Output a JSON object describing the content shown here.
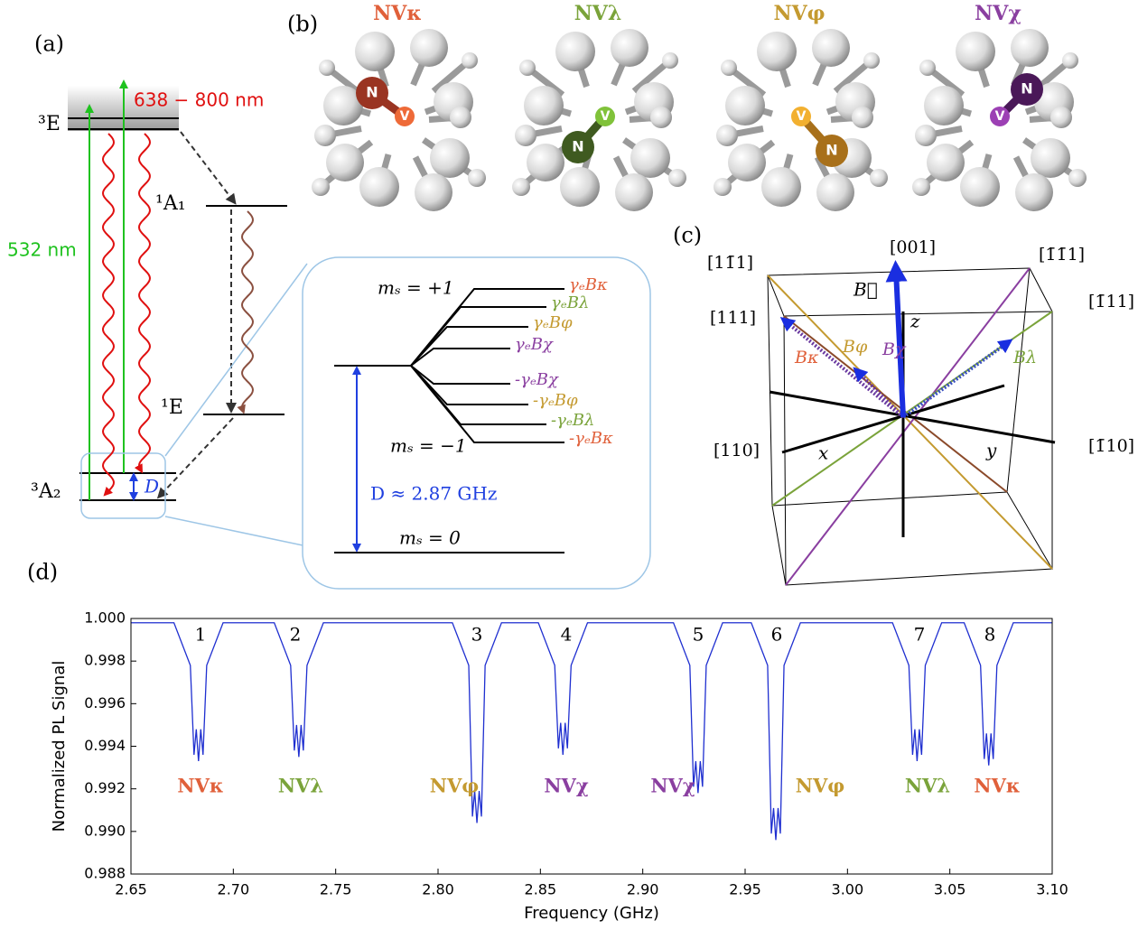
{
  "panel_a": {
    "label": "(a)",
    "level_3E": "³E",
    "level_1A1": "¹A₁",
    "level_1E": "¹E",
    "level_3A2": "³A₂",
    "excitation": "532 nm",
    "emission": "638 − 800 nm",
    "splitting": "D",
    "inset": {
      "ms_plus": "mₛ = +1",
      "ms_minus": "mₛ = −1",
      "ms_zero": "mₛ = 0",
      "zfs": "D ≈ 2.87 GHz",
      "zeeman": [
        {
          "text": "γₑBκ",
          "color": "#e0603a"
        },
        {
          "text": "γₑBλ",
          "color": "#7aa33a"
        },
        {
          "text": "γₑBφ",
          "color": "#c49a30"
        },
        {
          "text": "γₑBχ",
          "color": "#8a3fa0"
        },
        {
          "text": "-γₑBχ",
          "color": "#8a3fa0"
        },
        {
          "text": "-γₑBφ",
          "color": "#c49a30"
        },
        {
          "text": "-γₑBλ",
          "color": "#7aa33a"
        },
        {
          "text": "-γₑBκ",
          "color": "#e0603a"
        }
      ]
    }
  },
  "panel_b": {
    "label": "(b)",
    "titles": [
      {
        "text": "NVκ",
        "color": "#e0603a"
      },
      {
        "text": "NVλ",
        "color": "#7aa33a"
      },
      {
        "text": "NVφ",
        "color": "#c49a30"
      },
      {
        "text": "NVχ",
        "color": "#8a3fa0"
      }
    ]
  },
  "panel_c": {
    "label": "(c)",
    "directions": [
      "[1̄1̄1]",
      "[11̄1]",
      "[111]",
      "[1̄11]",
      "[001]",
      "[110]",
      "[1̄10]"
    ],
    "field": "B⃗",
    "axes": [
      "z",
      "x",
      "y"
    ],
    "fields": [
      {
        "text": "Bκ",
        "color": "#e0603a"
      },
      {
        "text": "Bφ",
        "color": "#c49a30"
      },
      {
        "text": "Bχ",
        "color": "#8a3fa0"
      },
      {
        "text": "Bλ",
        "color": "#7aa33a"
      }
    ]
  },
  "chart_data": {
    "type": "line",
    "panel_label": "(d)",
    "xlabel": "Frequency (GHz)",
    "ylabel": "Normalized PL Signal",
    "color": "#1f2fd0",
    "xlim": [
      2.65,
      3.1
    ],
    "ylim": [
      0.988,
      1.0
    ],
    "xticks": [
      2.65,
      {
        "value": 2.7,
        "label": "2.70"
      },
      2.75,
      {
        "value": 2.8,
        "label": "2.80"
      },
      2.85,
      {
        "value": 2.9,
        "label": "2.90"
      },
      2.95,
      {
        "value": 3.0,
        "label": "3.00"
      },
      3.05,
      {
        "value": 3.1,
        "label": "3.10"
      }
    ],
    "yticks": [
      0.988,
      {
        "value": 0.99,
        "label": "0.990"
      },
      0.992,
      0.994,
      0.996,
      0.998,
      {
        "value": 1.0,
        "label": "1.000"
      }
    ],
    "x": [
      2.65,
      2.671,
      2.679,
      2.6808,
      2.6819,
      2.683,
      2.6841,
      2.6852,
      2.687,
      2.695,
      2.72,
      2.728,
      2.7298,
      2.7309,
      2.732,
      2.7331,
      2.7342,
      2.736,
      2.744,
      2.807,
      2.815,
      2.8168,
      2.8179,
      2.819,
      2.8201,
      2.8212,
      2.823,
      2.831,
      2.849,
      2.857,
      2.8588,
      2.8599,
      2.861,
      2.8621,
      2.8632,
      2.865,
      2.873,
      2.915,
      2.923,
      2.9248,
      2.9259,
      2.927,
      2.9281,
      2.9292,
      2.931,
      2.939,
      2.953,
      2.961,
      2.9628,
      2.9639,
      2.965,
      2.9661,
      2.9672,
      2.969,
      2.977,
      3.022,
      3.03,
      3.0318,
      3.0329,
      3.034,
      3.0351,
      3.0362,
      3.038,
      3.046,
      3.057,
      3.065,
      3.0668,
      3.0679,
      3.069,
      3.0701,
      3.0712,
      3.073,
      3.081,
      3.1
    ],
    "values": [
      0.9998,
      0.9998,
      0.9978,
      0.9936,
      0.9948,
      0.9933,
      0.9948,
      0.9936,
      0.9978,
      0.9998,
      0.9998,
      0.9978,
      0.9938,
      0.995,
      0.9935,
      0.995,
      0.9938,
      0.9978,
      0.9998,
      0.9998,
      0.9978,
      0.9907,
      0.9919,
      0.9904,
      0.9919,
      0.9907,
      0.9978,
      0.9998,
      0.9998,
      0.9978,
      0.9939,
      0.9951,
      0.9936,
      0.9951,
      0.9939,
      0.9978,
      0.9998,
      0.9998,
      0.9978,
      0.9921,
      0.9933,
      0.9918,
      0.9933,
      0.9921,
      0.9978,
      0.9998,
      0.9998,
      0.9978,
      0.9899,
      0.9911,
      0.9896,
      0.9911,
      0.9899,
      0.9978,
      0.9998,
      0.9998,
      0.9978,
      0.9936,
      0.9948,
      0.9933,
      0.9948,
      0.9936,
      0.9978,
      0.9998,
      0.9998,
      0.9978,
      0.9934,
      0.9946,
      0.9931,
      0.9946,
      0.9934,
      0.9978,
      0.9998,
      0.9998
    ],
    "peak_labels": [
      "1",
      "2",
      "3",
      "4",
      "5",
      "6",
      "7",
      "8"
    ],
    "dip_labels": [
      {
        "text": "NVκ",
        "color": "#e0603a"
      },
      {
        "text": "NVλ",
        "color": "#7aa33a"
      },
      {
        "text": "NVφ",
        "color": "#c49a30"
      },
      {
        "text": "NVχ",
        "color": "#8a3fa0"
      },
      {
        "text": "NVχ",
        "color": "#8a3fa0"
      },
      {
        "text": "NVφ",
        "color": "#c49a30"
      },
      {
        "text": "NVλ",
        "color": "#7aa33a"
      },
      {
        "text": "NVκ",
        "color": "#e0603a"
      }
    ]
  }
}
